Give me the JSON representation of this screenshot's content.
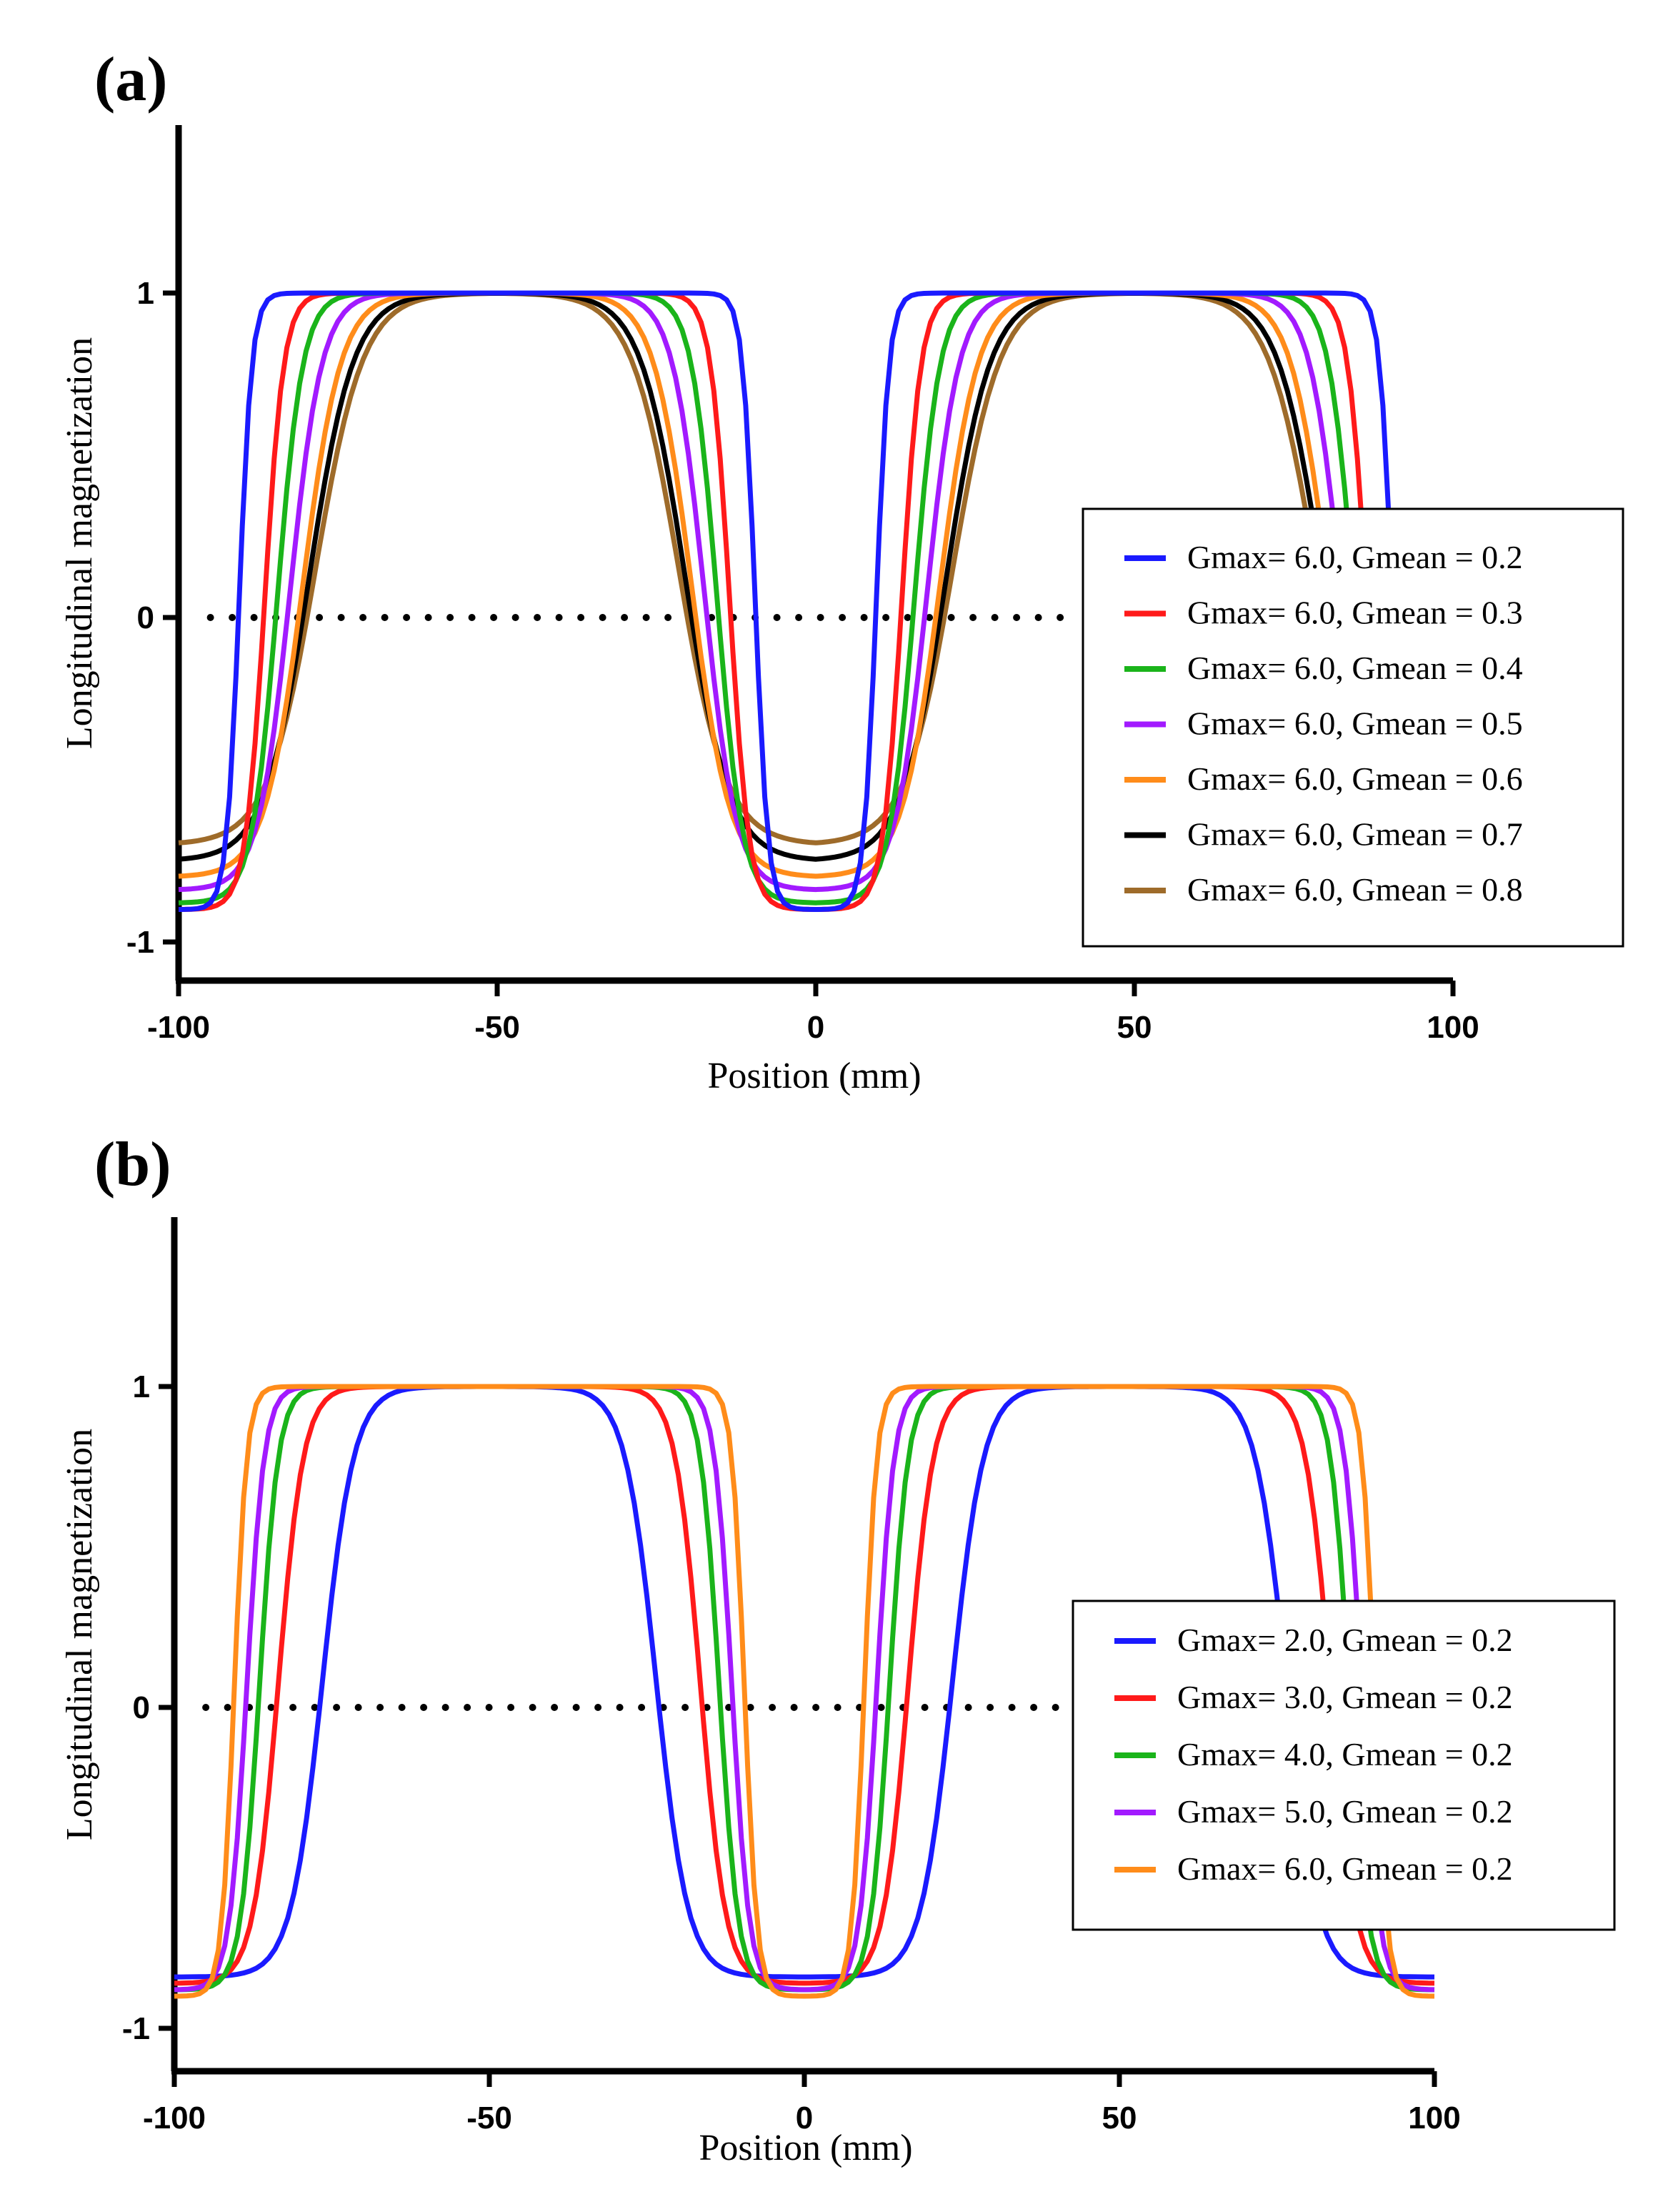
{
  "chart_data": [
    {
      "panel_label": "(a)",
      "type": "line",
      "xlabel": "Position (mm)",
      "ylabel": "Longitudinal magnetization",
      "xlim": [
        -100,
        100
      ],
      "ylim": [
        -1.1,
        1.5
      ],
      "xticks": [
        -100,
        -50,
        0,
        50,
        100
      ],
      "xtick_labels": [
        "-100",
        "-50",
        "0",
        "50",
        "100"
      ],
      "yticks": [
        -1,
        0,
        1
      ],
      "ytick_labels": [
        "-1",
        "0",
        "1"
      ],
      "legend_position": "right",
      "reference_line": {
        "y": 0,
        "style": "dotted",
        "x_range": [
          -95,
          40
        ]
      },
      "profile_model": {
        "centers": [
          -50,
          50
        ],
        "plateau": 1.0
      },
      "series": [
        {
          "name": "Gmax= 6.0, Gmean = 0.2",
          "color": "#1a1aff",
          "min": -0.9,
          "half_width": 40.5,
          "transition": 4
        },
        {
          "name": "Gmax= 6.0, Gmean = 0.3",
          "color": "#ff1a1a",
          "min": -0.9,
          "half_width": 36.5,
          "transition": 6
        },
        {
          "name": "Gmax= 6.0, Gmean = 0.4",
          "color": "#1ab41a",
          "min": -0.88,
          "half_width": 34.5,
          "transition": 8
        },
        {
          "name": "Gmax= 6.0, Gmean = 0.5",
          "color": "#a21aff",
          "min": -0.84,
          "half_width": 32.5,
          "transition": 10
        },
        {
          "name": "Gmax= 6.0, Gmean = 0.6",
          "color": "#ff8c1a",
          "min": -0.8,
          "half_width": 30.5,
          "transition": 12
        },
        {
          "name": "Gmax= 6.0, Gmean = 0.7",
          "color": "#000000",
          "min": -0.75,
          "half_width": 29.5,
          "transition": 14
        },
        {
          "name": "Gmax= 6.0, Gmean = 0.8",
          "color": "#9e6b2a",
          "min": -0.7,
          "half_width": 28.5,
          "transition": 15
        }
      ]
    },
    {
      "panel_label": "(b)",
      "type": "line",
      "xlabel": "Position (mm)",
      "ylabel": "Longitudinal magnetization",
      "xlim": [
        -100,
        100
      ],
      "ylim": [
        -1.1,
        1.5
      ],
      "xticks": [
        -100,
        -50,
        0,
        50,
        100
      ],
      "xtick_labels": [
        "-100",
        "-50",
        "0",
        "50",
        "100"
      ],
      "yticks": [
        -1,
        0,
        1
      ],
      "ytick_labels": [
        "-1",
        "0",
        "1"
      ],
      "legend_position": "right",
      "reference_line": {
        "y": 0,
        "style": "dotted",
        "x_range": [
          -95,
          40
        ]
      },
      "profile_model": {
        "centers": [
          -50,
          50
        ],
        "plateau": 1.0
      },
      "series": [
        {
          "name": "Gmax= 2.0, Gmean = 0.2",
          "color": "#1a1aff",
          "min": -0.84,
          "half_width": 26.5,
          "transition": 10
        },
        {
          "name": "Gmax= 3.0, Gmean = 0.2",
          "color": "#ff1a1a",
          "min": -0.86,
          "half_width": 33.5,
          "transition": 8
        },
        {
          "name": "Gmax= 4.0, Gmean = 0.2",
          "color": "#1ab41a",
          "min": -0.88,
          "half_width": 36.5,
          "transition": 6
        },
        {
          "name": "Gmax= 5.0, Gmean = 0.2",
          "color": "#a21aff",
          "min": -0.88,
          "half_width": 38.5,
          "transition": 5.5
        },
        {
          "name": "Gmax= 6.0, Gmean = 0.2",
          "color": "#ff8c1a",
          "min": -0.9,
          "half_width": 40.5,
          "transition": 4
        }
      ]
    }
  ]
}
